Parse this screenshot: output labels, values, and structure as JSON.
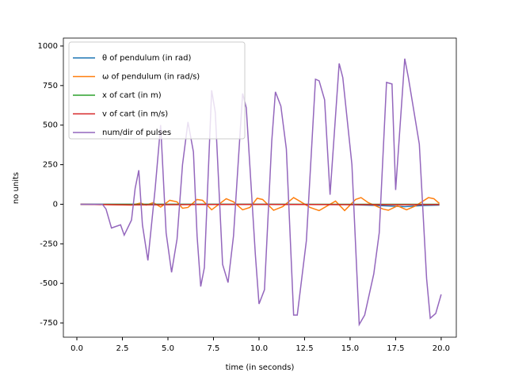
{
  "chart_data": {
    "type": "line",
    "xlabel": "time (in seconds)",
    "ylabel": "no units",
    "xlim": [
      -0.74,
      20.83
    ],
    "ylim": [
      -840,
      1050
    ],
    "xticks": [
      {
        "value": 0,
        "label": "0.0"
      },
      2.5,
      {
        "value": 5,
        "label": "5.0"
      },
      7.5,
      {
        "value": 10,
        "label": "10.0"
      },
      12.5,
      {
        "value": 15,
        "label": "15.0"
      },
      17.5,
      {
        "value": 20,
        "label": "20.0"
      }
    ],
    "yticks": [
      -750,
      -500,
      -250,
      0,
      250,
      500,
      750,
      1000
    ],
    "legend": "upper left",
    "series": [
      {
        "name": "θ of pendulum (in rad)",
        "color": "#1f77b4",
        "x": [
          0.2,
          5,
          10,
          15,
          16.5,
          18,
          19,
          19.9
        ],
        "values": [
          0,
          0,
          0,
          -2,
          -8,
          -15,
          -8,
          -5
        ]
      },
      {
        "name": "ω of pendulum (in rad/s)",
        "color": "#ff7f0e",
        "x": [
          0.2,
          2.0,
          3.0,
          3.5,
          3.8,
          4.2,
          4.6,
          5.1,
          5.5,
          5.8,
          6.1,
          6.6,
          6.9,
          7.4,
          8.2,
          8.6,
          9.1,
          9.5,
          9.9,
          10.2,
          10.8,
          11.3,
          11.9,
          12.3,
          12.8,
          13.3,
          14.2,
          14.7,
          15.3,
          15.6,
          16.0,
          16.8,
          17.1,
          17.6,
          18.1,
          18.6,
          19.3,
          19.6,
          19.9
        ],
        "values": [
          0,
          -3,
          -5,
          8,
          -5,
          10,
          -18,
          25,
          15,
          -25,
          -20,
          30,
          25,
          -35,
          35,
          15,
          -35,
          -20,
          38,
          30,
          -38,
          -15,
          42,
          15,
          -20,
          -40,
          20,
          -40,
          30,
          42,
          10,
          -30,
          -38,
          -10,
          -35,
          -10,
          42,
          35,
          5
        ]
      },
      {
        "name": "x of cart (in m)",
        "color": "#2ca02c",
        "x": [
          0.2,
          10,
          19.9
        ],
        "values": [
          0,
          0,
          0
        ]
      },
      {
        "name": "v of cart  (in m/s)",
        "color": "#d62728",
        "x": [
          0.2,
          2,
          3,
          6,
          10,
          14,
          18,
          19.9
        ],
        "values": [
          0,
          -3,
          -4,
          -2,
          -1,
          -2,
          -3,
          -2
        ]
      },
      {
        "name": "num/dir of pulses",
        "color": "#9467bd",
        "x": [
          0.2,
          1.4,
          1.6,
          1.9,
          2.4,
          2.6,
          3.0,
          3.2,
          3.4,
          3.6,
          3.9,
          4.3,
          4.6,
          4.9,
          5.2,
          5.5,
          5.8,
          6.1,
          6.4,
          6.6,
          6.8,
          7.0,
          7.4,
          7.6,
          8.0,
          8.3,
          8.6,
          9.1,
          9.3,
          9.8,
          10.0,
          10.3,
          10.7,
          10.9,
          11.2,
          11.5,
          11.9,
          12.1,
          12.6,
          13.1,
          13.3,
          13.6,
          13.9,
          14.4,
          14.6,
          15.1,
          15.5,
          15.8,
          16.3,
          16.6,
          17.0,
          17.3,
          17.5,
          18.0,
          18.2,
          18.8,
          19.2,
          19.4,
          19.7,
          20.0
        ],
        "values": [
          0,
          0,
          -30,
          -150,
          -130,
          -195,
          -100,
          100,
          215,
          -130,
          -355,
          100,
          500,
          -180,
          -430,
          -220,
          250,
          520,
          330,
          -200,
          -520,
          -400,
          720,
          580,
          -380,
          -495,
          -200,
          700,
          610,
          -320,
          -630,
          -540,
          400,
          710,
          620,
          350,
          -700,
          -700,
          -230,
          790,
          780,
          660,
          60,
          890,
          800,
          250,
          -760,
          -700,
          -440,
          -180,
          770,
          760,
          90,
          920,
          800,
          380,
          -470,
          -720,
          -690,
          -570
        ]
      }
    ]
  }
}
